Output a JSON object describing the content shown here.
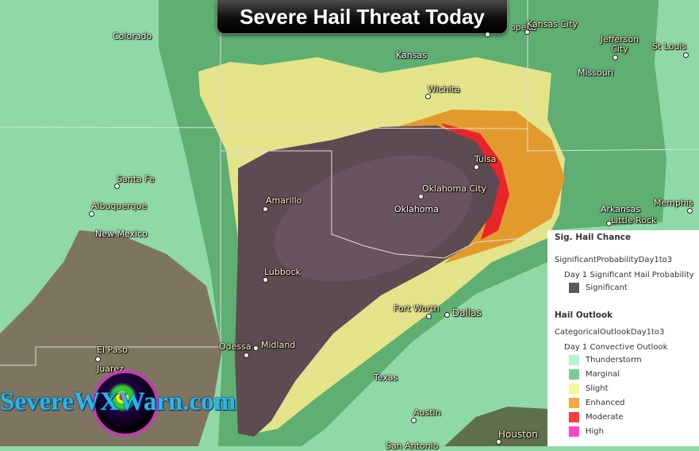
{
  "title": "Severe Hail Threat Today",
  "colors": {
    "background": "#8fd9a6",
    "thunderstorm": "#b3f7d0",
    "marginal": "#7bc996",
    "slight": "#f5f59a",
    "enhanced": "#f5a83c",
    "moderate": "#ff3a3a",
    "high": "#ff44cc",
    "significant": "#5a5a5a"
  },
  "map_labels": {
    "states": [
      "Colorado",
      "Kansas",
      "Missouri",
      "New Mexico",
      "Oklahoma",
      "Texas",
      "Arkansas"
    ],
    "cities": [
      "Topeka",
      "Kansas City",
      "Jefferson City",
      "St Louis",
      "Wichita",
      "Tulsa",
      "Oklahoma City",
      "Santa Fe",
      "Albuquerque",
      "Amarillo",
      "Lubbock",
      "Fort Worth",
      "Dallas",
      "Odessa",
      "Midland",
      "El Paso",
      "Juárez",
      "Austin",
      "Houston",
      "San Antonio",
      "Little Rock",
      "Memphis"
    ]
  },
  "legend": {
    "sig_heading": "Sig. Hail Chance",
    "sig_layer": "SignificantProbabilityDay1to3",
    "sig_sublayer": "Day 1 Significant Hail Probability",
    "sig_items": [
      {
        "label": "Significant",
        "color": "#5a5a5a"
      }
    ],
    "outlook_heading": "Hail Outlook",
    "outlook_layer": "CategoricalOutlookDay1to3",
    "outlook_sublayer": "Day 1 Convective Outlook",
    "outlook_items": [
      {
        "label": "Thunderstorm",
        "color": "#b3f7d0"
      },
      {
        "label": "Marginal",
        "color": "#7bc996"
      },
      {
        "label": "Slight",
        "color": "#f5f59a"
      },
      {
        "label": "Enhanced",
        "color": "#f5a83c"
      },
      {
        "label": "Moderate",
        "color": "#ff3a3a"
      },
      {
        "label": "High",
        "color": "#ff44cc"
      }
    ]
  },
  "logo": {
    "text": "SevereWXWarn.com"
  }
}
